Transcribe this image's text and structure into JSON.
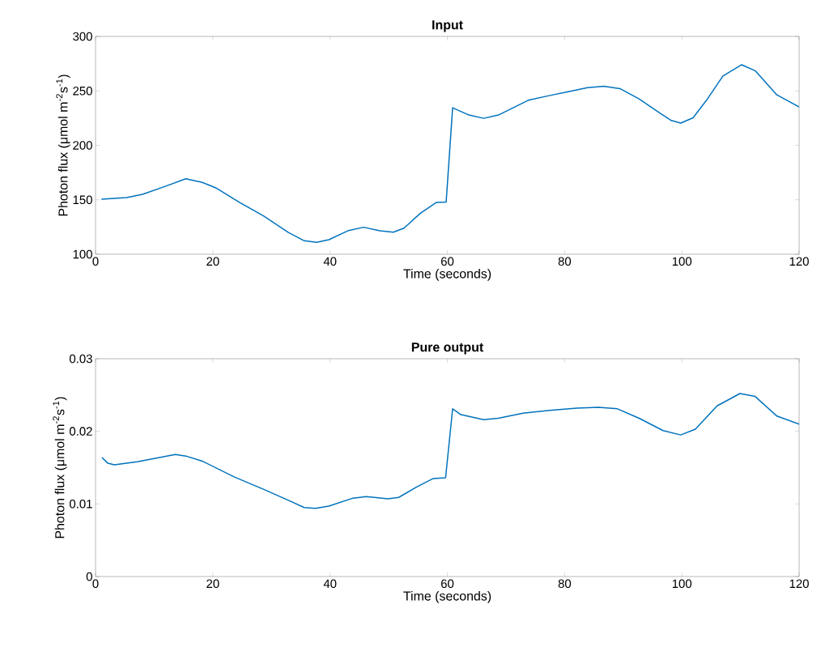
{
  "chart_data": [
    {
      "type": "line",
      "title": "Input",
      "xlabel": "Time (seconds)",
      "ylabel": "Photon flux (μmol m$^{-2}$s$^{-1}$)",
      "x": [
        1,
        5.3,
        8,
        11.7,
        15.4,
        18.2,
        20.5,
        24.6,
        28.7,
        32.9,
        35.6,
        37.7,
        39.8,
        43,
        45.7,
        48.5,
        50.8,
        52.6,
        55.4,
        58.1,
        59.8,
        60.9,
        63.7,
        66.2,
        68.7,
        73.8,
        77.5,
        80.3,
        83.9,
        86.7,
        89.5,
        92.7,
        96.4,
        98.2,
        99.8,
        101.9,
        104.2,
        107,
        110.2,
        112.5,
        116.2,
        120
      ],
      "series": [
        {
          "color": "#0072bd",
          "values": [
            150.5,
            152,
            155,
            162,
            169.3,
            166,
            161,
            147.5,
            135,
            120,
            112.4,
            111,
            113.4,
            121.5,
            124.8,
            121.5,
            120.3,
            124,
            137.6,
            147.5,
            148,
            234.5,
            227.8,
            224.8,
            227.8,
            241.4,
            245.8,
            248.8,
            253,
            254.2,
            252,
            242.6,
            229,
            222.8,
            220.4,
            225.3,
            241.4,
            263.6,
            274,
            268.5,
            246.3,
            235.2
          ]
        }
      ],
      "xlim": [
        0,
        120
      ],
      "ylim": [
        100,
        300
      ],
      "xticks": [
        0,
        20,
        40,
        60,
        80,
        100,
        120
      ],
      "yticks": [
        100,
        150,
        200,
        250,
        300
      ]
    },
    {
      "type": "line",
      "title": "Pure output",
      "xlabel": "Time (seconds)",
      "ylabel": "Photon flux (μmol m$^{-2}$s$^{-1}$)",
      "x": [
        1.1,
        2.1,
        3.2,
        7.1,
        13.6,
        15.4,
        18.2,
        23.7,
        28.7,
        32.9,
        35.6,
        37.5,
        39.8,
        43.9,
        46.2,
        49.9,
        51.7,
        54.9,
        57.6,
        59.7,
        60.9,
        62.3,
        66.2,
        68.7,
        72.9,
        77.5,
        82.1,
        85.8,
        89,
        92.7,
        96.8,
        99.8,
        102.3,
        106,
        109.9,
        112.5,
        116.2,
        120
      ],
      "series": [
        {
          "color": "#0072bd",
          "values": [
            0.0164,
            0.0156,
            0.0154,
            0.0158,
            0.0168,
            0.0166,
            0.0159,
            0.0137,
            0.012,
            0.0105,
            0.0095,
            0.0094,
            0.0097,
            0.0108,
            0.011,
            0.0107,
            0.0109,
            0.0124,
            0.0135,
            0.0136,
            0.0231,
            0.0223,
            0.0216,
            0.0218,
            0.0225,
            0.0229,
            0.0232,
            0.0233,
            0.0231,
            0.0218,
            0.0201,
            0.0195,
            0.0203,
            0.0235,
            0.0252,
            0.0248,
            0.0221,
            0.021
          ]
        }
      ],
      "xlim": [
        0,
        120
      ],
      "ylim": [
        0,
        0.03
      ],
      "xticks": [
        0,
        20,
        40,
        60,
        80,
        100,
        120
      ],
      "yticks": [
        0,
        0.01,
        0.02,
        0.03
      ]
    }
  ]
}
